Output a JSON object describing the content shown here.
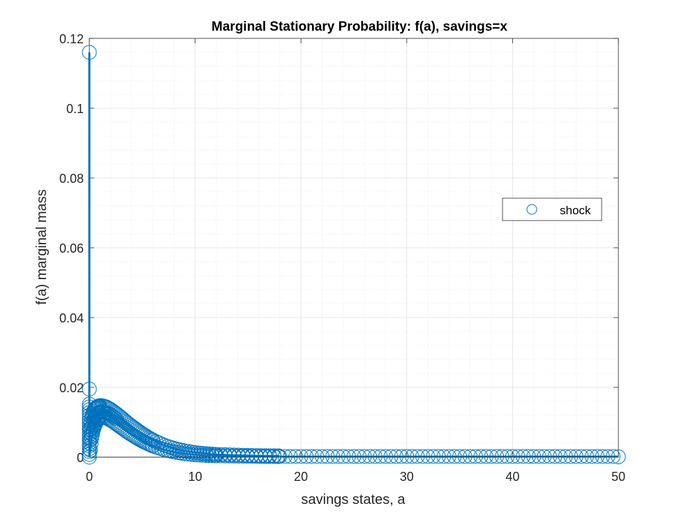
{
  "chart_data": {
    "type": "scatter",
    "title": "Marginal Stationary Probability: f(a), savings=x",
    "xlabel": "savings states, a",
    "ylabel": "f(a) marginal mass",
    "xlim": [
      0,
      50
    ],
    "ylim": [
      0,
      0.12
    ],
    "x_ticks": [
      0,
      10,
      20,
      30,
      40,
      50
    ],
    "y_ticks": [
      0,
      0.02,
      0.04,
      0.06,
      0.08,
      0.1,
      0.12
    ],
    "x_tick_labels": [
      "0",
      "10",
      "20",
      "30",
      "40",
      "50"
    ],
    "y_tick_labels": [
      "0",
      "0.02",
      "0.04",
      "0.06",
      "0.08",
      "0.1",
      "0.12"
    ],
    "grid": "major-and-minor",
    "legend": {
      "placement": "right",
      "entries": [
        "shock"
      ]
    },
    "series_color": "#0072BD",
    "spike": {
      "x": 0,
      "y_top": 0.116,
      "y_second": 0.0195
    },
    "dense_hump_envelope": {
      "x": [
        0.02,
        0.1,
        0.2,
        0.35,
        0.5,
        0.75,
        1.0,
        1.3,
        1.6,
        2.0,
        2.5,
        3.0,
        3.5,
        4.0,
        5.0,
        6.0,
        7.0,
        8.0,
        9.0,
        10.0,
        11.0,
        12.0,
        14.0,
        16.0,
        18.0
      ],
      "upper": [
        0.004,
        0.008,
        0.011,
        0.0128,
        0.0138,
        0.0145,
        0.0148,
        0.0147,
        0.0144,
        0.0137,
        0.0126,
        0.0114,
        0.0101,
        0.0089,
        0.0067,
        0.0049,
        0.0035,
        0.0025,
        0.0018,
        0.0013,
        0.001,
        0.0008,
        0.0006,
        0.00045,
        0.0004
      ],
      "lower": [
        0.0,
        0.002,
        0.005,
        0.0075,
        0.009,
        0.0105,
        0.0112,
        0.0114,
        0.0112,
        0.0106,
        0.0096,
        0.0085,
        0.0074,
        0.0064,
        0.0046,
        0.0032,
        0.0022,
        0.0015,
        0.001,
        0.0007,
        0.0005,
        0.0004,
        0.0003,
        0.0002,
        0.00015
      ]
    },
    "tail": {
      "x_start": 18,
      "x_end": 50,
      "y": 0.0002,
      "x_last": 50,
      "y_last": 0.0001
    }
  }
}
